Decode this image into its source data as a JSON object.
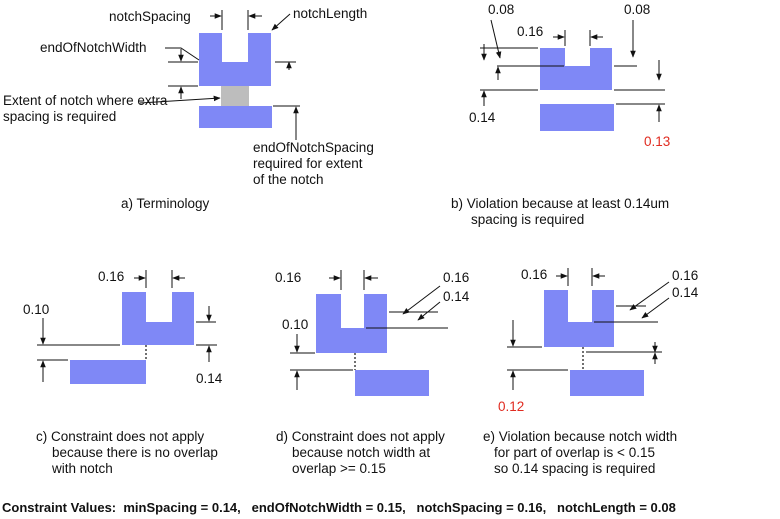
{
  "colors": {
    "shape_fill": "#7f88f6",
    "extent_grey": "#bdbdbd",
    "violation_red": "#e02b20"
  },
  "panel_a": {
    "notch_spacing": "notchSpacing",
    "notch_length": "notchLength",
    "end_of_notch_width": "endOfNotchWidth",
    "extent_line1": "Extent of notch where extra",
    "extent_line2": "spacing is required",
    "eons_line1": "endOfNotchSpacing",
    "eons_line2": "required for extent",
    "eons_line3": "of the notch",
    "caption": "a) Terminology"
  },
  "panel_b": {
    "left_top": "0.08",
    "notch": "0.16",
    "right_top": "0.08",
    "left_bottom": "0.14",
    "spacing": "0.13",
    "caption_line1": "b) Violation because at least 0.14um",
    "caption_line2": "spacing is required"
  },
  "panel_c": {
    "notch": "0.16",
    "left": "0.10",
    "right": "0.14",
    "caption_line1": "c) Constraint does not apply",
    "caption_line2": "because there is no overlap",
    "caption_line3": "with notch"
  },
  "panel_d": {
    "notch": "0.16",
    "right_top": "0.16",
    "right_mid": "0.14",
    "left": "0.10",
    "caption_line1": "d) Constraint does not apply",
    "caption_line2": "because notch width at",
    "caption_line3": "overlap >= 0.15"
  },
  "panel_e": {
    "notch": "0.16",
    "right_top": "0.16",
    "right_mid": "0.14",
    "spacing": "0.12",
    "caption_line1": "e) Violation because notch width",
    "caption_line2": "for part of overlap is < 0.15",
    "caption_line3": "so 0.14 spacing is required"
  },
  "footer": "Constraint Values:  minSpacing = 0.14,   endOfNotchWidth = 0.15,   notchSpacing = 0.16,   notchLength = 0.08"
}
